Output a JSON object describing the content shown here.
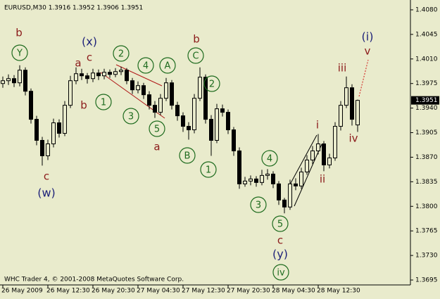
{
  "chart_data": {
    "type": "candlestick",
    "title": "EURUSD,M30  1.3916 1.3952 1.3906 1.3951",
    "credit": "WHC Trader 4, © 2001-2008 MetaQuotes Software Corp.",
    "categories": [
      "26 May 2009",
      null,
      null,
      null,
      null,
      null,
      null,
      null,
      "26 May 12:30",
      null,
      null,
      null,
      null,
      null,
      null,
      null,
      "26 May 20:30",
      null,
      null,
      null,
      null,
      null,
      null,
      null,
      "27 May 04:30",
      null,
      null,
      null,
      null,
      null,
      null,
      null,
      "27 May 12:30",
      null,
      null,
      null,
      null,
      null,
      null,
      null,
      "27 May 20:30",
      null,
      null,
      null,
      null,
      null,
      null,
      null,
      "28 May 04:30",
      null,
      null,
      null,
      null,
      null,
      null,
      null,
      "28 May 12:30",
      null,
      null,
      null,
      null,
      null,
      null,
      null
    ],
    "open": [
      1.3975,
      1.3979,
      1.3982,
      1.3976,
      1.3994,
      1.3964,
      1.3924,
      1.3894,
      1.3872,
      1.3889,
      1.3919,
      1.3904,
      1.3944,
      1.3979,
      1.3989,
      1.3986,
      1.3982,
      1.399,
      1.3986,
      1.3991,
      1.3988,
      1.3992,
      1.3994,
      1.3979,
      1.3966,
      1.3972,
      1.3959,
      1.3944,
      1.3934,
      1.3954,
      1.3976,
      1.3944,
      1.3929,
      1.3914,
      1.3909,
      1.3954,
      1.3984,
      1.3924,
      1.3894,
      1.3939,
      1.3934,
      1.3909,
      1.3879,
      1.3832,
      1.3836,
      1.3839,
      1.3834,
      1.3844,
      1.3846,
      1.3832,
      1.3809,
      1.3799,
      1.3832,
      1.3829,
      1.3849,
      1.3866,
      1.3879,
      1.3889,
      1.3859,
      1.3869,
      1.3914,
      1.3944,
      1.3969,
      1.3916
    ],
    "high": [
      1.3985,
      1.3988,
      1.3987,
      1.4001,
      1.3998,
      1.3968,
      1.3929,
      1.3899,
      1.3895,
      1.3925,
      1.3924,
      1.395,
      1.3986,
      1.3998,
      1.3996,
      1.399,
      1.3996,
      1.3995,
      1.3996,
      1.3995,
      1.3997,
      1.3999,
      1.3997,
      1.3983,
      1.3978,
      1.3976,
      1.3964,
      1.395,
      1.396,
      1.3983,
      1.398,
      1.3949,
      1.3934,
      1.392,
      1.396,
      1.3998,
      1.3988,
      1.393,
      1.3946,
      1.3945,
      1.3938,
      1.3913,
      1.3884,
      1.3842,
      1.3844,
      1.3843,
      1.3852,
      1.3853,
      1.385,
      1.3836,
      1.3812,
      1.3838,
      1.384,
      1.3855,
      1.3873,
      1.3886,
      1.3903,
      1.3893,
      1.3875,
      1.392,
      1.395,
      1.3985,
      1.3974,
      1.3952
    ],
    "low": [
      1.3969,
      1.3973,
      1.397,
      1.3971,
      1.3958,
      1.3918,
      1.3887,
      1.3858,
      1.3866,
      1.3884,
      1.3898,
      1.39,
      1.394,
      1.3974,
      1.398,
      1.3975,
      1.3977,
      1.398,
      1.3981,
      1.3983,
      1.3984,
      1.3987,
      1.3974,
      1.396,
      1.3961,
      1.3953,
      1.3938,
      1.3926,
      1.393,
      1.395,
      1.3938,
      1.3922,
      1.3906,
      1.3895,
      1.3904,
      1.395,
      1.3918,
      1.3872,
      1.389,
      1.3928,
      1.3903,
      1.3872,
      1.3825,
      1.3828,
      1.383,
      1.3828,
      1.383,
      1.3838,
      1.3826,
      1.3802,
      1.379,
      1.3795,
      1.3823,
      1.3825,
      1.3845,
      1.386,
      1.3874,
      1.385,
      1.3854,
      1.3865,
      1.3908,
      1.394,
      1.3915,
      1.3906
    ],
    "close": [
      1.3979,
      1.3982,
      1.3976,
      1.3994,
      1.3964,
      1.3924,
      1.3894,
      1.3872,
      1.3889,
      1.3919,
      1.3904,
      1.3944,
      1.3979,
      1.3989,
      1.3986,
      1.3982,
      1.399,
      1.3986,
      1.3991,
      1.3988,
      1.3992,
      1.3994,
      1.3979,
      1.3966,
      1.3972,
      1.3959,
      1.3944,
      1.3934,
      1.3954,
      1.3976,
      1.3944,
      1.3929,
      1.3914,
      1.3909,
      1.3954,
      1.3984,
      1.3924,
      1.3894,
      1.3939,
      1.3934,
      1.3909,
      1.3879,
      1.3832,
      1.3836,
      1.3839,
      1.3834,
      1.3844,
      1.3846,
      1.3832,
      1.3809,
      1.3799,
      1.3832,
      1.3829,
      1.3849,
      1.3866,
      1.3879,
      1.3889,
      1.3859,
      1.3869,
      1.3914,
      1.3944,
      1.3969,
      1.3924,
      1.3951
    ],
    "last_price": 1.3951,
    "ylim": [
      1.3688,
      1.4092
    ],
    "yticks": [
      {
        "value": 1.408,
        "label": "1.4080"
      },
      1.4045,
      {
        "value": 1.401,
        "label": "1.4010"
      },
      1.3975,
      {
        "value": 1.394,
        "label": "1.3940"
      },
      1.3905,
      {
        "value": 1.387,
        "label": "1.3870"
      },
      1.3835,
      {
        "value": 1.38,
        "label": "1.3800"
      },
      1.3765,
      {
        "value": 1.373,
        "label": "1.3730"
      },
      1.3695
    ],
    "annotations": [
      "b",
      "Y",
      "c",
      "(w)",
      "(x)",
      "c",
      "a",
      "b",
      "1",
      "2",
      "3",
      "4",
      "A",
      "5",
      "a",
      "b",
      "C",
      "2",
      "B",
      "1",
      "4",
      "3",
      "5",
      "c",
      "(y)",
      "iv",
      "i",
      "ii",
      "iii",
      "iv",
      "(i)",
      "v"
    ]
  }
}
